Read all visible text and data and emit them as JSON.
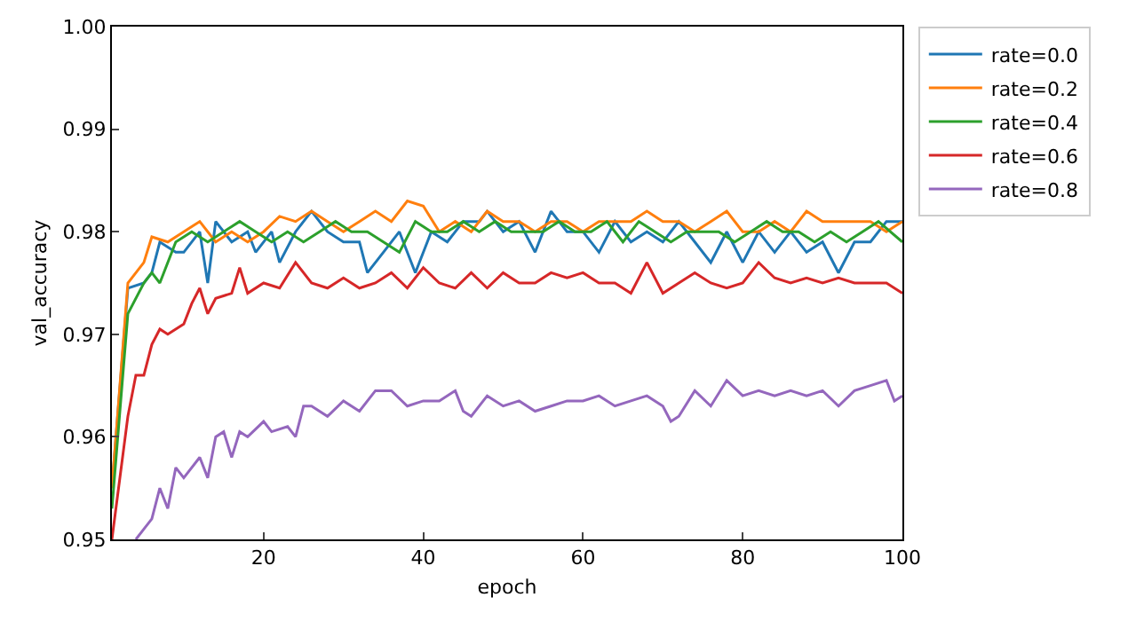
{
  "chart_data": {
    "type": "line",
    "xlabel": "epoch",
    "ylabel": "val_accuracy",
    "xlim": [
      1,
      100
    ],
    "xticks": [
      20,
      40,
      60,
      80,
      100
    ],
    "ylim": [
      0.95,
      1.0
    ],
    "yticks": [
      {
        "value": 0.95,
        "label": "0.95"
      },
      {
        "value": 0.96,
        "label": "0.96"
      },
      {
        "value": 0.97,
        "label": "0.97"
      },
      {
        "value": 0.98,
        "label": "0.98"
      },
      {
        "value": 0.99,
        "label": "0.99"
      },
      {
        "value": 1.0,
        "label": "1.00"
      }
    ],
    "grid": false,
    "legend": "top right",
    "marker": "none",
    "line_style": "solid",
    "series": [
      {
        "name": "rate=0.0",
        "color": "#1f77b4",
        "x": [
          1,
          3,
          5,
          6,
          7,
          9,
          10,
          12,
          13,
          14,
          16,
          18,
          19,
          21,
          22,
          24,
          26,
          28,
          30,
          32,
          33,
          35,
          37,
          39,
          41,
          43,
          45,
          47,
          48,
          50,
          52,
          54,
          56,
          58,
          60,
          62,
          64,
          66,
          68,
          70,
          72,
          74,
          76,
          78,
          80,
          82,
          84,
          86,
          88,
          90,
          92,
          94,
          96,
          98,
          100
        ],
        "values": [
          0.955,
          0.9745,
          0.975,
          0.976,
          0.979,
          0.978,
          0.978,
          0.98,
          0.975,
          0.981,
          0.979,
          0.98,
          0.978,
          0.98,
          0.977,
          0.98,
          0.982,
          0.98,
          0.979,
          0.979,
          0.976,
          0.978,
          0.98,
          0.976,
          0.98,
          0.979,
          0.981,
          0.981,
          0.982,
          0.98,
          0.981,
          0.978,
          0.982,
          0.98,
          0.98,
          0.978,
          0.981,
          0.979,
          0.98,
          0.979,
          0.981,
          0.979,
          0.977,
          0.98,
          0.977,
          0.98,
          0.978,
          0.98,
          0.978,
          0.979,
          0.976,
          0.979,
          0.979,
          0.981,
          0.981
        ]
      },
      {
        "name": "rate=0.2",
        "color": "#ff7f0e",
        "x": [
          1,
          3,
          5,
          6,
          8,
          10,
          12,
          14,
          16,
          18,
          20,
          22,
          24,
          26,
          28,
          30,
          32,
          34,
          36,
          38,
          40,
          42,
          44,
          46,
          48,
          50,
          52,
          54,
          56,
          58,
          60,
          62,
          64,
          66,
          68,
          70,
          72,
          74,
          76,
          78,
          80,
          82,
          84,
          86,
          88,
          90,
          92,
          94,
          96,
          98,
          100
        ],
        "values": [
          0.955,
          0.975,
          0.977,
          0.9795,
          0.979,
          0.98,
          0.981,
          0.979,
          0.98,
          0.979,
          0.98,
          0.9815,
          0.981,
          0.982,
          0.981,
          0.98,
          0.981,
          0.982,
          0.981,
          0.983,
          0.9825,
          0.98,
          0.981,
          0.98,
          0.982,
          0.981,
          0.981,
          0.98,
          0.981,
          0.981,
          0.98,
          0.981,
          0.981,
          0.981,
          0.982,
          0.981,
          0.981,
          0.98,
          0.981,
          0.982,
          0.98,
          0.98,
          0.981,
          0.98,
          0.982,
          0.981,
          0.981,
          0.981,
          0.981,
          0.98,
          0.981
        ]
      },
      {
        "name": "rate=0.4",
        "color": "#2ca02c",
        "x": [
          1,
          3,
          5,
          6,
          7,
          9,
          11,
          13,
          15,
          17,
          19,
          21,
          23,
          25,
          27,
          29,
          31,
          33,
          35,
          37,
          39,
          41,
          43,
          45,
          47,
          49,
          51,
          53,
          55,
          57,
          59,
          61,
          63,
          65,
          67,
          69,
          71,
          73,
          75,
          77,
          79,
          81,
          83,
          85,
          87,
          89,
          91,
          93,
          95,
          97,
          100
        ],
        "values": [
          0.953,
          0.972,
          0.975,
          0.976,
          0.975,
          0.979,
          0.98,
          0.979,
          0.98,
          0.981,
          0.98,
          0.979,
          0.98,
          0.979,
          0.98,
          0.981,
          0.98,
          0.98,
          0.979,
          0.978,
          0.981,
          0.98,
          0.98,
          0.981,
          0.98,
          0.981,
          0.98,
          0.98,
          0.98,
          0.981,
          0.98,
          0.98,
          0.981,
          0.979,
          0.981,
          0.98,
          0.979,
          0.98,
          0.98,
          0.98,
          0.979,
          0.98,
          0.981,
          0.98,
          0.98,
          0.979,
          0.98,
          0.979,
          0.98,
          0.981,
          0.979
        ]
      },
      {
        "name": "rate=0.6",
        "color": "#d62728",
        "x": [
          1,
          3,
          4,
          5,
          6,
          7,
          8,
          10,
          11,
          12,
          13,
          14,
          16,
          17,
          18,
          20,
          22,
          24,
          26,
          28,
          30,
          32,
          34,
          36,
          38,
          40,
          42,
          44,
          46,
          48,
          50,
          52,
          54,
          56,
          58,
          60,
          62,
          64,
          66,
          68,
          70,
          72,
          74,
          76,
          78,
          80,
          82,
          84,
          86,
          88,
          90,
          92,
          94,
          96,
          98,
          100
        ],
        "values": [
          0.95,
          0.962,
          0.966,
          0.966,
          0.969,
          0.9705,
          0.97,
          0.971,
          0.973,
          0.9745,
          0.972,
          0.9735,
          0.974,
          0.9765,
          0.974,
          0.975,
          0.9745,
          0.977,
          0.975,
          0.9745,
          0.9755,
          0.9745,
          0.975,
          0.976,
          0.9745,
          0.9765,
          0.975,
          0.9745,
          0.976,
          0.9745,
          0.976,
          0.975,
          0.975,
          0.976,
          0.9755,
          0.976,
          0.975,
          0.975,
          0.974,
          0.977,
          0.974,
          0.975,
          0.976,
          0.975,
          0.9745,
          0.975,
          0.977,
          0.9755,
          0.975,
          0.9755,
          0.975,
          0.9755,
          0.975,
          0.975,
          0.975,
          0.974
        ]
      },
      {
        "name": "rate=0.8",
        "color": "#9467bd",
        "x": [
          4,
          5,
          6,
          7,
          8,
          9,
          10,
          12,
          13,
          14,
          15,
          16,
          17,
          18,
          20,
          21,
          23,
          24,
          25,
          26,
          28,
          30,
          32,
          34,
          36,
          38,
          40,
          42,
          44,
          45,
          46,
          48,
          50,
          52,
          54,
          56,
          58,
          60,
          62,
          64,
          66,
          68,
          70,
          71,
          72,
          74,
          76,
          78,
          80,
          82,
          84,
          86,
          88,
          90,
          92,
          94,
          96,
          98,
          99,
          100
        ],
        "values": [
          0.95,
          0.951,
          0.952,
          0.955,
          0.953,
          0.957,
          0.956,
          0.958,
          0.956,
          0.96,
          0.9605,
          0.958,
          0.9605,
          0.96,
          0.9615,
          0.9605,
          0.961,
          0.96,
          0.963,
          0.963,
          0.962,
          0.9635,
          0.9625,
          0.9645,
          0.9645,
          0.963,
          0.9635,
          0.9635,
          0.9645,
          0.9625,
          0.962,
          0.964,
          0.963,
          0.9635,
          0.9625,
          0.963,
          0.9635,
          0.9635,
          0.964,
          0.963,
          0.9635,
          0.964,
          0.963,
          0.9615,
          0.962,
          0.9645,
          0.963,
          0.9655,
          0.964,
          0.9645,
          0.964,
          0.9645,
          0.964,
          0.9645,
          0.963,
          0.9645,
          0.965,
          0.9655,
          0.9635,
          0.964
        ]
      }
    ]
  }
}
